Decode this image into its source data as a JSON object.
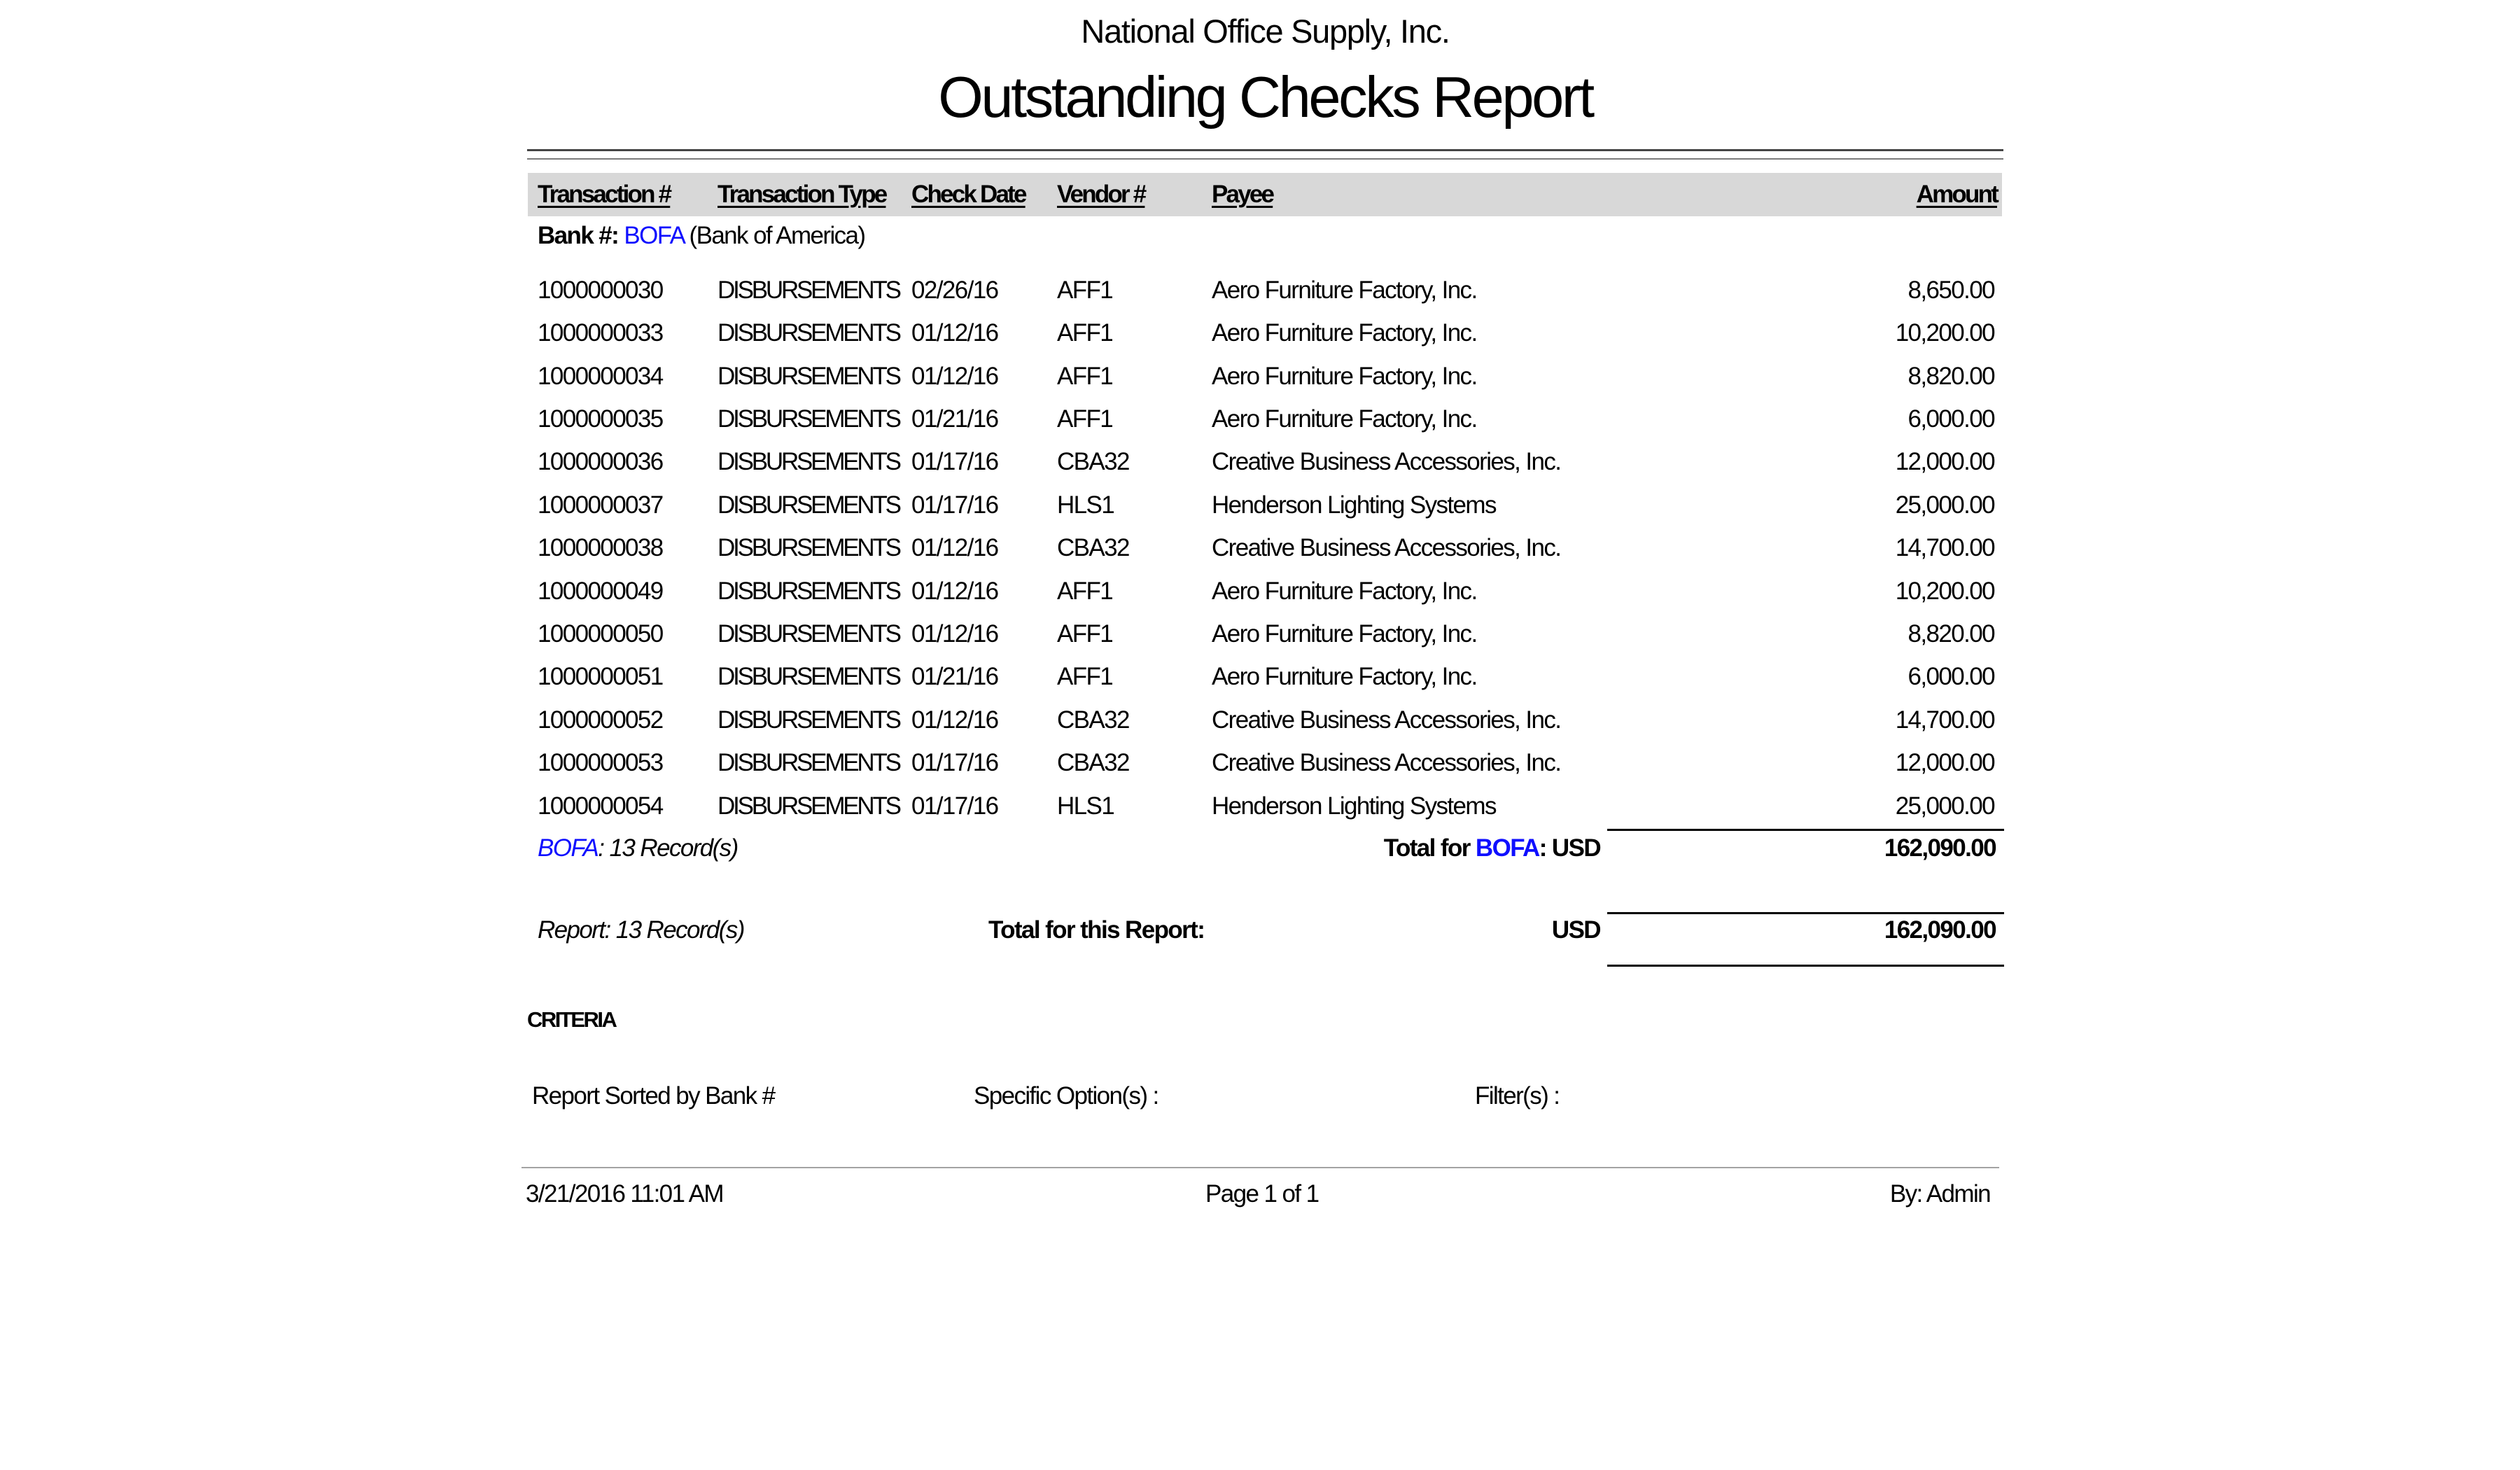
{
  "report": {
    "company": "National Office Supply, Inc.",
    "title": "Outstanding Checks Report"
  },
  "table": {
    "columns": [
      "Transaction #",
      "Transaction Type",
      "Check Date",
      "Vendor #",
      "Payee",
      "Amount"
    ],
    "bank_group": {
      "label": "Bank #:",
      "code": "BOFA",
      "name": "(Bank of America)"
    },
    "rows": [
      [
        "1000000030",
        "DISBURSEMENTS",
        "02/26/16",
        "AFF1",
        "Aero Furniture Factory, Inc.",
        "8,650.00"
      ],
      [
        "1000000033",
        "DISBURSEMENTS",
        "01/12/16",
        "AFF1",
        "Aero Furniture Factory, Inc.",
        "10,200.00"
      ],
      [
        "1000000034",
        "DISBURSEMENTS",
        "01/12/16",
        "AFF1",
        "Aero Furniture Factory, Inc.",
        "8,820.00"
      ],
      [
        "1000000035",
        "DISBURSEMENTS",
        "01/21/16",
        "AFF1",
        "Aero Furniture Factory, Inc.",
        "6,000.00"
      ],
      [
        "1000000036",
        "DISBURSEMENTS",
        "01/17/16",
        "CBA32",
        "Creative Business Accessories, Inc.",
        "12,000.00"
      ],
      [
        "1000000037",
        "DISBURSEMENTS",
        "01/17/16",
        "HLS1",
        "Henderson Lighting Systems",
        "25,000.00"
      ],
      [
        "1000000038",
        "DISBURSEMENTS",
        "01/12/16",
        "CBA32",
        "Creative Business Accessories, Inc.",
        "14,700.00"
      ],
      [
        "1000000049",
        "DISBURSEMENTS",
        "01/12/16",
        "AFF1",
        "Aero Furniture Factory, Inc.",
        "10,200.00"
      ],
      [
        "1000000050",
        "DISBURSEMENTS",
        "01/12/16",
        "AFF1",
        "Aero Furniture Factory, Inc.",
        "8,820.00"
      ],
      [
        "1000000051",
        "DISBURSEMENTS",
        "01/21/16",
        "AFF1",
        "Aero Furniture Factory, Inc.",
        "6,000.00"
      ],
      [
        "1000000052",
        "DISBURSEMENTS",
        "01/12/16",
        "CBA32",
        "Creative Business Accessories, Inc.",
        "14,700.00"
      ],
      [
        "1000000053",
        "DISBURSEMENTS",
        "01/17/16",
        "CBA32",
        "Creative Business Accessories, Inc.",
        "12,000.00"
      ],
      [
        "1000000054",
        "DISBURSEMENTS",
        "01/17/16",
        "HLS1",
        "Henderson Lighting Systems",
        "25,000.00"
      ]
    ],
    "group_total": {
      "records_code": "BOFA",
      "records_rest": ": 13 Record(s)",
      "label_prefix": "Total for ",
      "label_code": "BOFA",
      "label_suffix": ": USD",
      "amount": "162,090.00"
    },
    "report_total": {
      "records": "Report: 13 Record(s)",
      "label": "Total for this Report:",
      "currency": "USD",
      "amount": "162,090.00"
    }
  },
  "criteria": {
    "heading": "CRITERIA",
    "sorted_by": "Report Sorted by Bank #",
    "specific_options": "Specific Option(s) :",
    "filters": "Filter(s) :"
  },
  "footer": {
    "datetime": "3/21/2016 11:01 AM",
    "page": "Page 1 of 1",
    "by": "By: Admin"
  },
  "colors": {
    "link_blue": "#0f0fff",
    "header_band": "#d8d8d8",
    "rule_dark": "#454545",
    "rule_light": "#7a7a7a",
    "totals_line": "#000000",
    "footer_line": "#a3a3a3",
    "text": "#000000",
    "background": "#ffffff"
  }
}
